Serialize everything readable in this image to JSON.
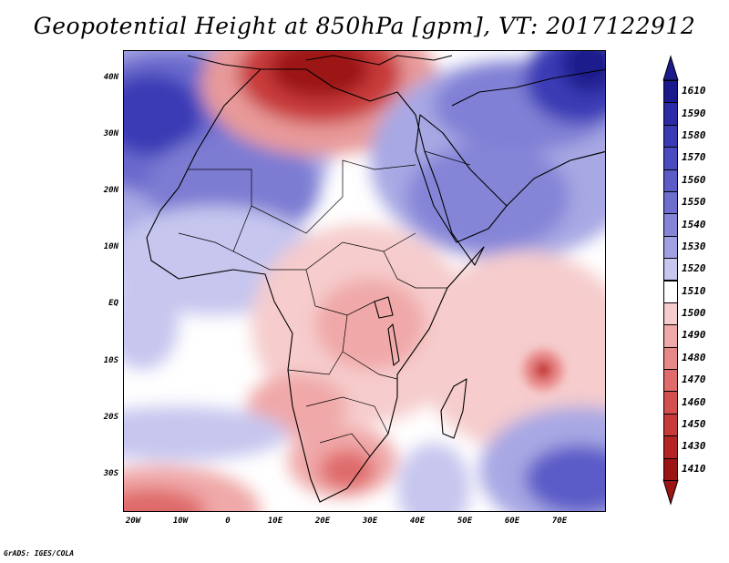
{
  "title": "Geopotential Height at 850hPa [gpm], VT: 2017122912",
  "footer": "GrADS: IGES/COLA",
  "map": {
    "variable": "Geopotential Height at 850hPa",
    "units": "gpm",
    "valid_time": "2017122912",
    "lat_ticks": [
      "40N",
      "30N",
      "20N",
      "10N",
      "EQ",
      "10S",
      "20S",
      "30S"
    ],
    "lat_values": [
      40,
      30,
      20,
      10,
      0,
      -10,
      -20,
      -30
    ],
    "lon_ticks": [
      "20W",
      "10W",
      "0",
      "10E",
      "20E",
      "30E",
      "40E",
      "50E",
      "60E",
      "70E"
    ],
    "lon_values": [
      -20,
      -10,
      0,
      10,
      20,
      30,
      40,
      50,
      60,
      70
    ]
  },
  "colorbar": {
    "labels": [
      "1610",
      "1590",
      "1580",
      "1570",
      "1560",
      "1550",
      "1540",
      "1530",
      "1520",
      "1510",
      "1500",
      "1490",
      "1480",
      "1470",
      "1460",
      "1450",
      "1430",
      "1410"
    ],
    "colors": [
      "#1a1a8c",
      "#2b2ba8",
      "#3a3ab5",
      "#4b4bc0",
      "#5c5cc8",
      "#6e6ecf",
      "#8585d8",
      "#a0a0e2",
      "#c6c6ef",
      "#ffffff",
      "#f6cccc",
      "#f0a8a8",
      "#e88888",
      "#df6b6b",
      "#d45050",
      "#c83a3a",
      "#b52424",
      "#9c1414"
    ]
  }
}
